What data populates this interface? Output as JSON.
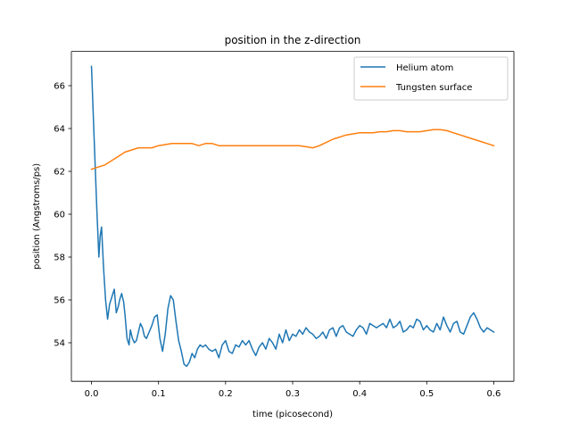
{
  "chart_data": {
    "type": "line",
    "title": "position in the z-direction",
    "xlabel": "time (picosecond)",
    "ylabel": "position (Angstroms/ps)",
    "xlim": [
      -0.03,
      0.63
    ],
    "ylim": [
      52.2,
      67.6
    ],
    "xticks": [
      0.0,
      0.1,
      0.2,
      0.3,
      0.4,
      0.5,
      0.6
    ],
    "xtick_labels": [
      "0.0",
      "0.1",
      "0.2",
      "0.3",
      "0.4",
      "0.5",
      "0.6"
    ],
    "yticks": [
      54,
      56,
      58,
      60,
      62,
      64,
      66
    ],
    "ytick_labels": [
      "54",
      "56",
      "58",
      "60",
      "62",
      "64",
      "66"
    ],
    "grid": false,
    "legend_position": "top-right",
    "series": [
      {
        "name": "Helium atom",
        "color": "#1f77b4",
        "x": [
          0.0,
          0.004,
          0.008,
          0.011,
          0.013,
          0.015,
          0.018,
          0.021,
          0.024,
          0.027,
          0.03,
          0.034,
          0.037,
          0.04,
          0.042,
          0.045,
          0.048,
          0.05,
          0.053,
          0.056,
          0.058,
          0.061,
          0.064,
          0.067,
          0.07,
          0.073,
          0.076,
          0.079,
          0.082,
          0.086,
          0.09,
          0.094,
          0.098,
          0.102,
          0.106,
          0.11,
          0.114,
          0.118,
          0.122,
          0.126,
          0.13,
          0.134,
          0.138,
          0.142,
          0.146,
          0.15,
          0.154,
          0.158,
          0.162,
          0.166,
          0.17,
          0.175,
          0.18,
          0.185,
          0.19,
          0.195,
          0.2,
          0.205,
          0.21,
          0.215,
          0.22,
          0.225,
          0.23,
          0.235,
          0.24,
          0.245,
          0.25,
          0.255,
          0.26,
          0.265,
          0.27,
          0.275,
          0.28,
          0.285,
          0.29,
          0.295,
          0.3,
          0.305,
          0.31,
          0.315,
          0.32,
          0.325,
          0.33,
          0.335,
          0.34,
          0.345,
          0.35,
          0.355,
          0.36,
          0.365,
          0.37,
          0.375,
          0.38,
          0.385,
          0.39,
          0.395,
          0.4,
          0.405,
          0.41,
          0.415,
          0.42,
          0.425,
          0.43,
          0.435,
          0.44,
          0.445,
          0.45,
          0.455,
          0.46,
          0.465,
          0.47,
          0.475,
          0.48,
          0.485,
          0.49,
          0.495,
          0.5,
          0.505,
          0.51,
          0.515,
          0.52,
          0.525,
          0.53,
          0.535,
          0.54,
          0.545,
          0.55,
          0.555,
          0.56,
          0.565,
          0.57,
          0.575,
          0.58,
          0.585,
          0.59,
          0.595,
          0.6
        ],
        "values": [
          66.9,
          63.5,
          60.2,
          58.0,
          59.0,
          59.4,
          57.5,
          56.0,
          55.1,
          55.8,
          56.1,
          56.5,
          55.4,
          55.7,
          56.0,
          56.3,
          55.9,
          55.3,
          54.2,
          53.9,
          54.6,
          54.2,
          54.0,
          54.1,
          54.5,
          54.9,
          54.7,
          54.3,
          54.2,
          54.5,
          54.8,
          55.2,
          55.3,
          54.2,
          53.6,
          54.4,
          55.6,
          56.2,
          56.0,
          55.0,
          54.1,
          53.6,
          53.0,
          52.9,
          53.1,
          53.5,
          53.3,
          53.7,
          53.9,
          53.8,
          53.9,
          53.7,
          53.6,
          53.7,
          53.3,
          53.9,
          54.1,
          53.6,
          53.5,
          53.9,
          53.8,
          54.1,
          53.9,
          54.1,
          53.7,
          53.4,
          53.8,
          54.0,
          53.7,
          54.2,
          54.0,
          53.7,
          54.4,
          54.0,
          54.6,
          54.1,
          54.4,
          54.3,
          54.6,
          54.4,
          54.7,
          54.5,
          54.4,
          54.2,
          54.3,
          54.5,
          54.2,
          54.6,
          54.7,
          54.3,
          54.7,
          54.8,
          54.5,
          54.4,
          54.3,
          54.6,
          54.8,
          54.7,
          54.4,
          54.9,
          54.8,
          54.7,
          54.8,
          54.9,
          54.7,
          55.1,
          54.7,
          54.8,
          55.0,
          54.5,
          54.6,
          54.8,
          54.7,
          55.1,
          55.0,
          54.6,
          54.8,
          54.6,
          54.5,
          54.9,
          54.6,
          55.2,
          54.8,
          54.5,
          54.9,
          55.0,
          54.5,
          54.4,
          54.8,
          55.2,
          55.4,
          55.1,
          54.7,
          54.5,
          54.7,
          54.6,
          54.5
        ],
        "line_width": 1.5
      },
      {
        "name": "Tungsten surface",
        "color": "#ff7f0e",
        "x": [
          0.0,
          0.01,
          0.02,
          0.03,
          0.04,
          0.05,
          0.06,
          0.07,
          0.08,
          0.09,
          0.1,
          0.11,
          0.12,
          0.13,
          0.14,
          0.15,
          0.16,
          0.17,
          0.18,
          0.19,
          0.2,
          0.21,
          0.22,
          0.23,
          0.24,
          0.25,
          0.26,
          0.27,
          0.28,
          0.29,
          0.3,
          0.31,
          0.32,
          0.33,
          0.34,
          0.35,
          0.36,
          0.37,
          0.38,
          0.39,
          0.4,
          0.41,
          0.42,
          0.43,
          0.44,
          0.45,
          0.46,
          0.47,
          0.48,
          0.49,
          0.5,
          0.51,
          0.52,
          0.53,
          0.54,
          0.55,
          0.56,
          0.57,
          0.58,
          0.59,
          0.6
        ],
        "values": [
          62.1,
          62.2,
          62.3,
          62.5,
          62.7,
          62.9,
          63.0,
          63.1,
          63.1,
          63.1,
          63.2,
          63.25,
          63.3,
          63.3,
          63.3,
          63.3,
          63.2,
          63.3,
          63.3,
          63.2,
          63.2,
          63.2,
          63.2,
          63.2,
          63.2,
          63.2,
          63.2,
          63.2,
          63.2,
          63.2,
          63.2,
          63.2,
          63.15,
          63.1,
          63.2,
          63.35,
          63.5,
          63.6,
          63.7,
          63.75,
          63.8,
          63.8,
          63.8,
          63.85,
          63.85,
          63.9,
          63.9,
          63.85,
          63.85,
          63.85,
          63.9,
          63.95,
          63.95,
          63.9,
          63.8,
          63.7,
          63.6,
          63.5,
          63.4,
          63.3,
          63.2
        ],
        "line_width": 1.5
      }
    ]
  }
}
